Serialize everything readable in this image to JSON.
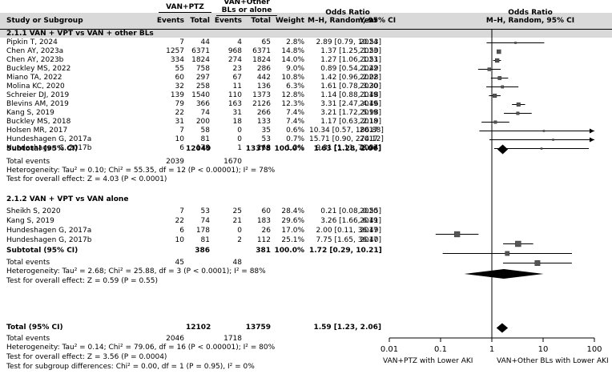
{
  "header": {
    "group1": "VAN+PTZ",
    "group2_line1": "VAN+Other",
    "group2_line2": "BLs or alone",
    "col_study": "Study or Subgroup",
    "col_events1": "Events",
    "col_total1": "Total",
    "col_events2": "Events",
    "col_total2": "Total",
    "col_weight": "Weight",
    "col_or_title": "Odds Ratio",
    "col_or_sub": "M–H, Random, 95% CI",
    "col_year": "Year",
    "plot_title": "Odds Ratio",
    "plot_sub": "M–H, Random, 95% CI"
  },
  "sections": [
    {
      "title": "2.1.1 VAN + VPT vs VAN + other BLs",
      "studies": [
        {
          "name": "Pipkin T, 2024",
          "e1": "7",
          "t1": "44",
          "e2": "4",
          "t2": "65",
          "weight": "2.8%",
          "ci_text": "2.89 [0.79, 10.53]",
          "year": "2024"
        },
        {
          "name": "Chen AY, 2023a",
          "e1": "1257",
          "t1": "6371",
          "e2": "968",
          "t2": "6371",
          "weight": "14.8%",
          "ci_text": "1.37 [1.25, 1.50]",
          "year": "2023"
        },
        {
          "name": "Chen AY, 2023b",
          "e1": "334",
          "t1": "1824",
          "e2": "274",
          "t2": "1824",
          "weight": "14.0%",
          "ci_text": "1.27 [1.06, 1.51]",
          "year": "2023"
        },
        {
          "name": "Buckley MS, 2022",
          "e1": "55",
          "t1": "758",
          "e2": "23",
          "t2": "286",
          "weight": "9.0%",
          "ci_text": "0.89 [0.54, 1.49]",
          "year": "2022"
        },
        {
          "name": "Miano TA, 2022",
          "e1": "60",
          "t1": "297",
          "e2": "67",
          "t2": "442",
          "weight": "10.8%",
          "ci_text": "1.42 [0.96, 2.08]",
          "year": "2022"
        },
        {
          "name": "Molina KC, 2020",
          "e1": "32",
          "t1": "258",
          "e2": "11",
          "t2": "136",
          "weight": "6.3%",
          "ci_text": "1.61 [0.78, 3.30]",
          "year": "2020"
        },
        {
          "name": "Schreier DJ, 2019",
          "e1": "139",
          "t1": "1540",
          "e2": "110",
          "t2": "1373",
          "weight": "12.8%",
          "ci_text": "1.14 [0.88, 1.48]",
          "year": "2019"
        },
        {
          "name": "Blevins AM, 2019",
          "e1": "79",
          "t1": "366",
          "e2": "163",
          "t2": "2126",
          "weight": "12.3%",
          "ci_text": "3.31 [2.47, 4.46]",
          "year": "2019"
        },
        {
          "name": "Kang S, 2019",
          "e1": "22",
          "t1": "74",
          "e2": "31",
          "t2": "266",
          "weight": "7.4%",
          "ci_text": "3.21 [1.72, 5.98]",
          "year": "2019"
        },
        {
          "name": "Buckley MS, 2018",
          "e1": "31",
          "t1": "200",
          "e2": "18",
          "t2": "133",
          "weight": "7.4%",
          "ci_text": "1.17 [0.63, 2.19]",
          "year": "2018"
        },
        {
          "name": "Holsen MR, 2017",
          "e1": "7",
          "t1": "58",
          "e2": "0",
          "t2": "35",
          "weight": "0.6%",
          "ci_text": "10.34 [0.57, 186.88]",
          "year": "2017"
        },
        {
          "name": "Hundeshagen G, 2017a",
          "e1": "10",
          "t1": "81",
          "e2": "0",
          "t2": "53",
          "weight": "0.7%",
          "ci_text": "15.71 [0.90, 274.12]",
          "year": "2017"
        },
        {
          "name": "Hundeshagen G, 2017b",
          "e1": "6",
          "t1": "178",
          "e2": "1",
          "t2": "268",
          "weight": "1.2%",
          "ci_text": "9.31 [1.11, 78.04]",
          "year": "2017"
        }
      ],
      "subtotal": {
        "label": "Subtotal (95% CI)",
        "t1": "12049",
        "t2": "13378",
        "weight": "100.0%",
        "ci_text": "1.63 [1.28, 2.06]"
      },
      "total_events": {
        "label": "Total events",
        "e1": "2039",
        "e2": "1670"
      },
      "heterogeneity": "Heterogeneity: Tau² = 0.10; Chi² = 55.35, df = 12 (P < 0.00001); I² = 78%",
      "overall_effect": "Test for overall effect: Z = 4.03 (P < 0.0001)"
    },
    {
      "title": "2.1.2 VAN + VPT vs VAN alone",
      "studies": [
        {
          "name": "Sheikh S, 2020",
          "e1": "7",
          "t1": "53",
          "e2": "25",
          "t2": "60",
          "weight": "28.4%",
          "ci_text": "0.21 [0.08, 0.55]",
          "year": "2020"
        },
        {
          "name": "Kang S, 2019",
          "e1": "22",
          "t1": "74",
          "e2": "21",
          "t2": "183",
          "weight": "29.6%",
          "ci_text": "3.26 [1.66, 6.41]",
          "year": "2019"
        },
        {
          "name": "Hundeshagen G, 2017a",
          "e1": "6",
          "t1": "178",
          "e2": "0",
          "t2": "26",
          "weight": "17.0%",
          "ci_text": "2.00 [0.11, 36.49]",
          "year": "2017"
        },
        {
          "name": "Hundeshagen G, 2017b",
          "e1": "10",
          "t1": "81",
          "e2": "2",
          "t2": "112",
          "weight": "25.1%",
          "ci_text": "7.75 [1.65, 36.40]",
          "year": "2017"
        }
      ],
      "subtotal": {
        "label": "Subtotal (95% CI)",
        "t1": "386",
        "t2": "381",
        "weight": "100.0%",
        "ci_text": "1.72 [0.29, 10.21]"
      },
      "total_events": {
        "label": "Total events",
        "e1": "45",
        "e2": "48"
      },
      "heterogeneity": "Heterogeneity: Tau² = 2.68; Chi² = 25.88, df = 3 (P < 0.0001); I² = 88%",
      "overall_effect": "Test for overall effect: Z = 0.59 (P = 0.55)"
    }
  ],
  "overall": {
    "label": "Total (95% CI)",
    "t1": "12102",
    "t2": "13759",
    "ci_text": "1.59 [1.23, 2.06]",
    "total_events": {
      "label": "Total events",
      "e1": "2046",
      "e2": "1718"
    },
    "heterogeneity": "Heterogeneity: Tau² = 0.14; Chi² = 79.06, df = 16 (P < 0.00001); I² = 80%",
    "overall_effect": "Test for overall effect: Z = 3.56 (P = 0.0004)",
    "subgroup_diff": "Test for subgroup differences: Chi² = 0.00, df = 1 (P = 0.95), I² = 0%"
  },
  "axis": {
    "ticks": [
      "0.01",
      "0.1",
      "1",
      "10",
      "100"
    ],
    "left_label": "VAN+PTZ with Lower AKI",
    "right_label": "VAN+Other BLs with Lower AKI"
  },
  "chart_data": {
    "type": "scatter",
    "subtype": "forest",
    "xscale": "log",
    "xlim": [
      0.01,
      100
    ],
    "null_line": 1,
    "series": [
      {
        "name": "2.1.1 VAN + VPT vs VAN + other BLs",
        "points": [
          {
            "study": "Pipkin T, 2024",
            "or": 2.89,
            "lo": 0.79,
            "hi": 10.53,
            "weight": 2.8
          },
          {
            "study": "Chen AY, 2023a",
            "or": 1.37,
            "lo": 1.25,
            "hi": 1.5,
            "weight": 14.8
          },
          {
            "study": "Chen AY, 2023b",
            "or": 1.27,
            "lo": 1.06,
            "hi": 1.51,
            "weight": 14.0
          },
          {
            "study": "Buckley MS, 2022",
            "or": 0.89,
            "lo": 0.54,
            "hi": 1.49,
            "weight": 9.0
          },
          {
            "study": "Miano TA, 2022",
            "or": 1.42,
            "lo": 0.96,
            "hi": 2.08,
            "weight": 10.8
          },
          {
            "study": "Molina KC, 2020",
            "or": 1.61,
            "lo": 0.78,
            "hi": 3.3,
            "weight": 6.3
          },
          {
            "study": "Schreier DJ, 2019",
            "or": 1.14,
            "lo": 0.88,
            "hi": 1.48,
            "weight": 12.8
          },
          {
            "study": "Blevins AM, 2019",
            "or": 3.31,
            "lo": 2.47,
            "hi": 4.46,
            "weight": 12.3
          },
          {
            "study": "Kang S, 2019",
            "or": 3.21,
            "lo": 1.72,
            "hi": 5.98,
            "weight": 7.4
          },
          {
            "study": "Buckley MS, 2018",
            "or": 1.17,
            "lo": 0.63,
            "hi": 2.19,
            "weight": 7.4
          },
          {
            "study": "Holsen MR, 2017",
            "or": 10.34,
            "lo": 0.57,
            "hi": 186.88,
            "weight": 0.6
          },
          {
            "study": "Hundeshagen G, 2017a",
            "or": 15.71,
            "lo": 0.9,
            "hi": 274.12,
            "weight": 0.7
          },
          {
            "study": "Hundeshagen G, 2017b",
            "or": 9.31,
            "lo": 1.11,
            "hi": 78.04,
            "weight": 1.2
          }
        ],
        "subtotal": {
          "or": 1.63,
          "lo": 1.28,
          "hi": 2.06
        }
      },
      {
        "name": "2.1.2 VAN + VPT vs VAN alone",
        "points": [
          {
            "study": "Sheikh S, 2020",
            "or": 0.21,
            "lo": 0.08,
            "hi": 0.55,
            "weight": 28.4
          },
          {
            "study": "Kang S, 2019",
            "or": 3.26,
            "lo": 1.66,
            "hi": 6.41,
            "weight": 29.6
          },
          {
            "study": "Hundeshagen G, 2017a",
            "or": 2.0,
            "lo": 0.11,
            "hi": 36.49,
            "weight": 17.0
          },
          {
            "study": "Hundeshagen G, 2017b",
            "or": 7.75,
            "lo": 1.65,
            "hi": 36.4,
            "weight": 25.1
          }
        ],
        "subtotal": {
          "or": 1.72,
          "lo": 0.29,
          "hi": 10.21
        }
      }
    ],
    "overall": {
      "or": 1.59,
      "lo": 1.23,
      "hi": 2.06
    }
  }
}
